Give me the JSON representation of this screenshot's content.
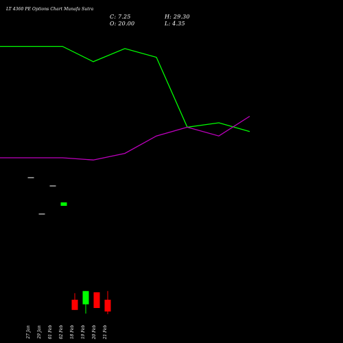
{
  "title": "LT 4360 PE Options Chart Munafa Sutra",
  "ohlc": {
    "close": "C: 7.25",
    "open": "O: 20.00",
    "high": "H: 29.30",
    "low": "L: 4.35"
  },
  "colors": {
    "background": "#000000",
    "line_green": "#00ff00",
    "line_magenta": "#c000c0",
    "candle_up": "#00ff00",
    "candle_down": "#ff0000",
    "text": "#ffffff"
  },
  "chart_data": {
    "type": "line",
    "categories": [
      "27 Jan",
      "29 Jan",
      "01 Feb",
      "02 Feb",
      "18 Feb",
      "19 Feb",
      "20 Feb",
      "21 Feb"
    ],
    "series": [
      {
        "color": "green",
        "values": [
          9.55,
          9.55,
          9.2,
          9.5,
          9.3,
          7.7,
          7.8,
          7.6
        ]
      },
      {
        "color": "magenta",
        "values": [
          7.0,
          7.0,
          6.95,
          7.1,
          7.5,
          7.7,
          7.5,
          7.95
        ]
      }
    ],
    "price_markers": [
      {
        "date": "27 Jan",
        "value": 6.6
      },
      {
        "date": "29 Jan",
        "value": 5.5
      },
      {
        "date": "01 Feb",
        "value": 6.35
      },
      {
        "date": "02 Feb",
        "value": 5.8
      }
    ],
    "candles": [
      {
        "date": "18 Feb",
        "open": 20.0,
        "close": 9.0,
        "high": 27.0,
        "low": 9.0
      },
      {
        "date": "19 Feb",
        "open": 15.0,
        "close": 29.3,
        "high": 29.3,
        "low": 5.0
      },
      {
        "date": "20 Feb",
        "open": 28.0,
        "close": 11.0,
        "high": 28.0,
        "low": 11.0
      },
      {
        "date": "21 Feb",
        "open": 20.0,
        "close": 7.25,
        "high": 29.3,
        "low": 4.35
      }
    ]
  }
}
